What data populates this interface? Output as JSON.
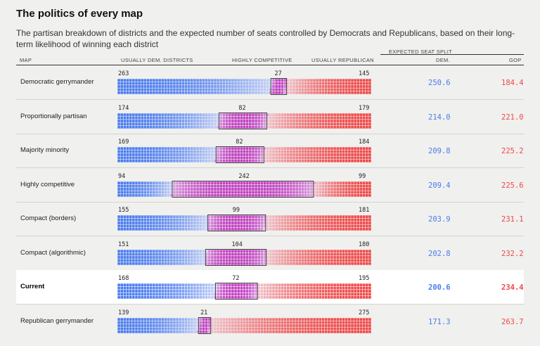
{
  "title": "The politics of every map",
  "subtitle": "The partisan breakdown of districts and the expected number of seats controlled by Democrats and Republicans, based on their long-term likelihood of winning each district",
  "headers": {
    "map": "MAP",
    "dem_districts": "USUALLY DEM. DISTRICTS",
    "competitive": "HIGHLY COMPETITIVE",
    "gop_districts": "USUALLY REPUBLICAN",
    "seat_split": "EXPECTED SEAT SPLIT",
    "dem": "DEM.",
    "gop": "GOP"
  },
  "colors": {
    "dem": "#4a7cf0",
    "gop": "#f04848",
    "competitive": "#c23fc2",
    "current_row_bg": "#ffffff"
  },
  "chart_data": {
    "type": "table",
    "title": "The politics of every map",
    "total_districts": 435,
    "columns": [
      "Map",
      "Usually Dem. districts",
      "Highly competitive",
      "Usually Republican",
      "Expected seats Dem.",
      "Expected seats GOP"
    ],
    "rows": [
      {
        "name": "Democratic gerrymander",
        "dem_districts": 263,
        "competitive": 27,
        "gop_districts": 145,
        "dem_seats": "250.6",
        "gop_seats": "184.4",
        "highlight": false
      },
      {
        "name": "Proportionally partisan",
        "dem_districts": 174,
        "competitive": 82,
        "gop_districts": 179,
        "dem_seats": "214.0",
        "gop_seats": "221.0",
        "highlight": false
      },
      {
        "name": "Majority minority",
        "dem_districts": 169,
        "competitive": 82,
        "gop_districts": 184,
        "dem_seats": "209.8",
        "gop_seats": "225.2",
        "highlight": false
      },
      {
        "name": "Highly competitive",
        "dem_districts": 94,
        "competitive": 242,
        "gop_districts": 99,
        "dem_seats": "209.4",
        "gop_seats": "225.6",
        "highlight": false
      },
      {
        "name": "Compact (borders)",
        "dem_districts": 155,
        "competitive": 99,
        "gop_districts": 181,
        "dem_seats": "203.9",
        "gop_seats": "231.1",
        "highlight": false
      },
      {
        "name": "Compact (algorithmic)",
        "dem_districts": 151,
        "competitive": 104,
        "gop_districts": 180,
        "dem_seats": "202.8",
        "gop_seats": "232.2",
        "highlight": false
      },
      {
        "name": "Current",
        "dem_districts": 168,
        "competitive": 72,
        "gop_districts": 195,
        "dem_seats": "200.6",
        "gop_seats": "234.4",
        "highlight": true
      },
      {
        "name": "Republican gerrymander",
        "dem_districts": 139,
        "competitive": 21,
        "gop_districts": 275,
        "dem_seats": "171.3",
        "gop_seats": "263.7",
        "highlight": false
      }
    ]
  }
}
